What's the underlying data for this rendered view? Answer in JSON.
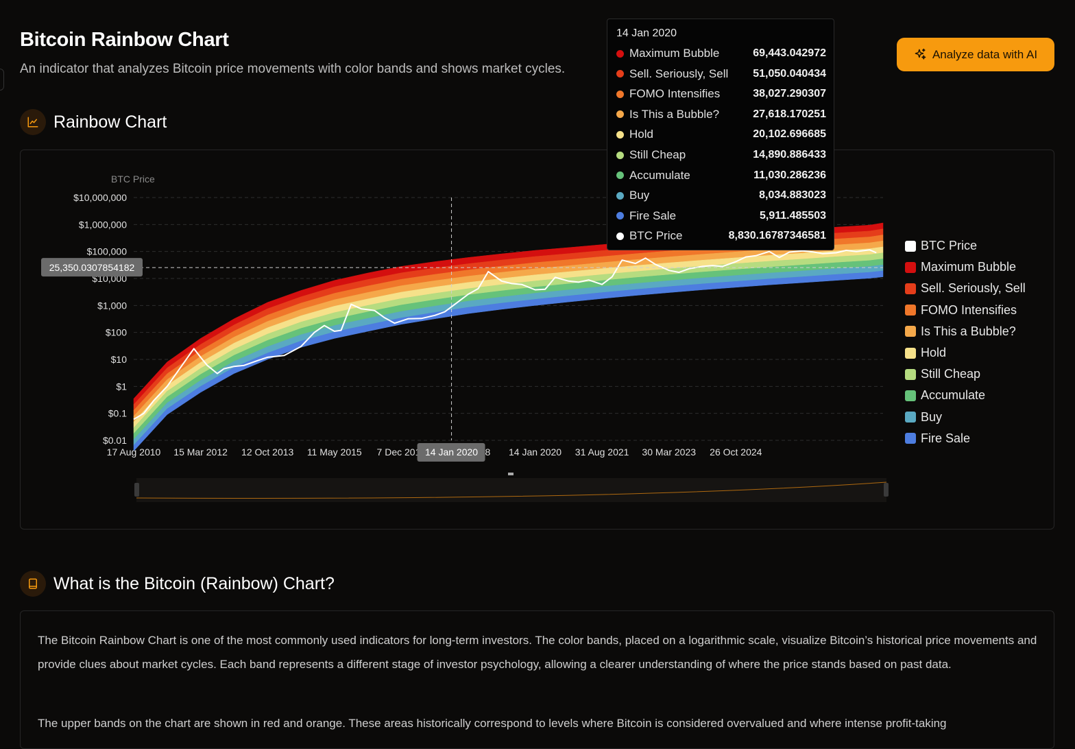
{
  "header": {
    "title": "Bitcoin Rainbow Chart",
    "subtitle": "An indicator that analyzes Bitcoin price movements with color bands and shows market cycles.",
    "ai_button_label": "Analyze data with AI"
  },
  "sections": {
    "chart_title": "Rainbow Chart",
    "info_title": "What is the Bitcoin (Rainbow) Chart?"
  },
  "info_paragraphs": [
    "The Bitcoin Rainbow Chart is one of the most commonly used indicators for long-term investors. The color bands, placed on a logarithmic scale, visualize Bitcoin’s historical price movements and provide clues about market cycles. Each band represents a different stage of investor psychology, allowing a clearer understanding of where the price stands based on past data.",
    "The upper bands on the chart are shown in red and orange. These areas historically correspond to levels where Bitcoin is considered overvalued and where intense profit-taking"
  ],
  "tooltip": {
    "date": "14 Jan 2020",
    "rows": [
      {
        "name": "Maximum Bubble",
        "value": "69,443.042972",
        "color": "#d40f0f"
      },
      {
        "name": "Sell. Seriously, Sell",
        "value": "51,050.040434",
        "color": "#e53d1a"
      },
      {
        "name": "FOMO Intensifies",
        "value": "38,027.290307",
        "color": "#f0772a"
      },
      {
        "name": "Is This a Bubble?",
        "value": "27,618.170251",
        "color": "#f5a84a"
      },
      {
        "name": "Hold",
        "value": "20,102.696685",
        "color": "#f6e18a"
      },
      {
        "name": "Still Cheap",
        "value": "14,890.886433",
        "color": "#b6dc80"
      },
      {
        "name": "Accumulate",
        "value": "11,030.286236",
        "color": "#66c27a"
      },
      {
        "name": "Buy",
        "value": "8,034.883023",
        "color": "#5aa9c2"
      },
      {
        "name": "Fire Sale",
        "value": "5,911.485503",
        "color": "#4d7de0"
      },
      {
        "name": "BTC Price",
        "value": "8,830.16787346581",
        "color": "#ffffff"
      }
    ]
  },
  "crosshair": {
    "y_value_label": "25,350.0307854182",
    "y_value": 25350.0307854182,
    "x_label": "14 Jan 2020",
    "x_index": 9.5
  },
  "legend": [
    {
      "name": "BTC Price",
      "color": "#ffffff"
    },
    {
      "name": "Maximum Bubble",
      "color": "#d40f0f"
    },
    {
      "name": "Sell. Seriously, Sell",
      "color": "#e53d1a"
    },
    {
      "name": "FOMO Intensifies",
      "color": "#f0772a"
    },
    {
      "name": "Is This a Bubble?",
      "color": "#f5a84a"
    },
    {
      "name": "Hold",
      "color": "#f6e18a"
    },
    {
      "name": "Still Cheap",
      "color": "#b6dc80"
    },
    {
      "name": "Accumulate",
      "color": "#66c27a"
    },
    {
      "name": "Buy",
      "color": "#5aa9c2"
    },
    {
      "name": "Fire Sale",
      "color": "#4d7de0"
    }
  ],
  "chart_data": {
    "type": "area",
    "ylabel": "BTC Price",
    "y_scale": "log",
    "ylim": [
      0.01,
      10000000
    ],
    "y_ticks": [
      {
        "value": 10000000,
        "label": "$10,000,000"
      },
      {
        "value": 1000000,
        "label": "$1,000,000"
      },
      {
        "value": 100000,
        "label": "$100,000"
      },
      {
        "value": 10000,
        "label": "$10,000"
      },
      {
        "value": 1000,
        "label": "$1,000"
      },
      {
        "value": 100,
        "label": "$100"
      },
      {
        "value": 10,
        "label": "$10"
      },
      {
        "value": 1,
        "label": "$1"
      },
      {
        "value": 0.1,
        "label": "$0.1"
      },
      {
        "value": 0.01,
        "label": "$0.01"
      }
    ],
    "x_ticks": [
      "17 Aug 2010",
      "15 Mar 2012",
      "12 Oct 2013",
      "11 May 2015",
      "7 Dec 2016",
      "6 Jul 2018",
      "14 Jan 2020",
      "31 Aug 2021",
      "30 Mar 2023",
      "26 Oct 2024"
    ],
    "x_range_index": [
      0,
      22.4
    ],
    "x_tick_step": 2,
    "band_fraction": [
      0.0,
      0.0,
      0.13,
      0.25,
      0.38,
      0.5,
      0.63,
      0.75,
      0.88,
      1.0,
      1.13,
      1.25,
      1.38,
      1.5,
      1.63,
      1.75,
      1.88,
      2.0,
      2.13,
      2.25,
      2.38,
      2.5,
      2.6
    ],
    "grid": true,
    "legend_position": "right",
    "series": [
      {
        "name": "BTC Price",
        "color": "#ffffff",
        "x": [
          0,
          0.3,
          0.6,
          1.0,
          1.4,
          1.8,
          2.0,
          2.2,
          2.5,
          2.7,
          3.0,
          3.3,
          3.7,
          4.0,
          4.5,
          5.0,
          5.4,
          5.7,
          6.0,
          6.2,
          6.5,
          6.8,
          7.0,
          7.2,
          7.5,
          7.8,
          8.2,
          8.6,
          9.0,
          9.3,
          9.6,
          10.0,
          10.3,
          10.6,
          11.0,
          11.3,
          11.6,
          12.0,
          12.3,
          12.6,
          13.0,
          13.3,
          13.6,
          14.0,
          14.3,
          14.6,
          15.0,
          15.3,
          15.6,
          16.0,
          16.3,
          16.6,
          17.0,
          17.3,
          17.6,
          18.0,
          18.3,
          18.6,
          19.0,
          19.3,
          19.6,
          20.0,
          20.3,
          20.6,
          21.0,
          21.3,
          21.6,
          22.0,
          22.2
        ],
        "y": [
          0.06,
          0.1,
          0.3,
          1.0,
          5.0,
          25,
          12,
          6,
          3,
          4.5,
          5.5,
          6,
          9,
          12,
          14,
          30,
          100,
          180,
          110,
          120,
          1100,
          750,
          700,
          650,
          350,
          220,
          320,
          330,
          430,
          580,
          1100,
          2600,
          4200,
          18000,
          8000,
          6500,
          6000,
          3800,
          4000,
          11000,
          8000,
          7300,
          8800,
          6000,
          11500,
          48000,
          36000,
          57000,
          33000,
          20000,
          16800,
          23000,
          28000,
          30000,
          28000,
          42000,
          63000,
          70000,
          100000,
          60000,
          95000,
          105000,
          97000,
          83000,
          90000,
          110000,
          100000,
          115000,
          90000
        ]
      }
    ],
    "bands": [
      {
        "name": "Maximum Bubble",
        "color": "#d40f0f",
        "x": [
          0,
          22.4
        ],
        "values": []
      },
      {
        "name": "Sell. Seriously, Sell",
        "color": "#e53d1a"
      },
      {
        "name": "FOMO Intensifies",
        "color": "#f0772a"
      },
      {
        "name": "Is This a Bubble?",
        "color": "#f5a84a"
      },
      {
        "name": "Hold",
        "color": "#f6e18a"
      },
      {
        "name": "Still Cheap",
        "color": "#b6dc80"
      },
      {
        "name": "Accumulate",
        "color": "#66c27a"
      },
      {
        "name": "Buy",
        "color": "#5aa9c2"
      },
      {
        "name": "Fire Sale",
        "color": "#4d7de0"
      }
    ],
    "band_curve": {
      "x": [
        0,
        1,
        2,
        3,
        4,
        5,
        6,
        7,
        8,
        9,
        10,
        11,
        12,
        13,
        14,
        15,
        16,
        17,
        18,
        19,
        20,
        21,
        22,
        22.4
      ],
      "top": [
        0.35,
        8,
        60,
        320,
        1300,
        3600,
        8500,
        16000,
        28000,
        42000,
        60000,
        82000,
        110000,
        140000,
        180000,
        230000,
        290000,
        360000,
        440000,
        540000,
        650000,
        800000,
        950000,
        1150000
      ],
      "bottom": [
        0.004,
        0.09,
        0.6,
        3,
        10,
        28,
        60,
        110,
        200,
        320,
        500,
        720,
        1000,
        1350,
        1800,
        2350,
        3000,
        3800,
        4700,
        5800,
        7000,
        8500,
        10200,
        11500
      ]
    }
  }
}
